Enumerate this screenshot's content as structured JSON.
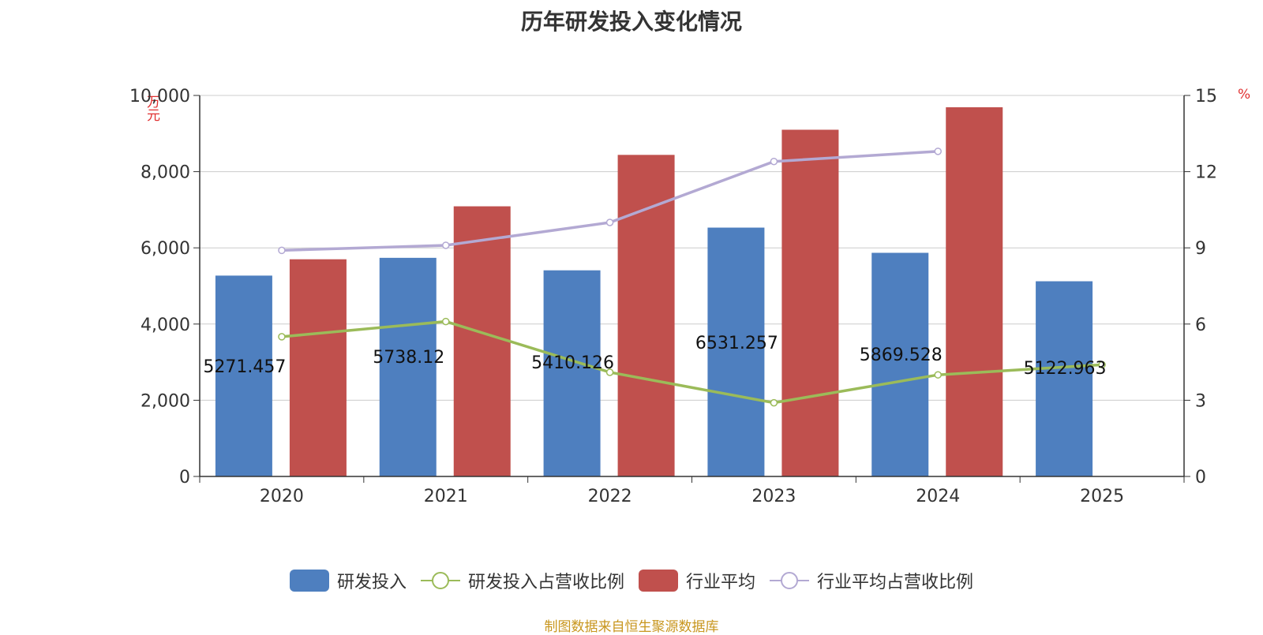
{
  "title": "历年研发投入变化情况",
  "source": "制图数据来自恒生聚源数据库",
  "units": {
    "left": "万元",
    "right": "%"
  },
  "legend": [
    {
      "label": "研发投入",
      "kind": "bar",
      "color": "#4e7fbf"
    },
    {
      "label": "研发投入占营收比例",
      "kind": "line",
      "color": "#9bbb59"
    },
    {
      "label": "行业平均",
      "kind": "bar",
      "color": "#c0504d"
    },
    {
      "label": "行业平均占营收比例",
      "kind": "line",
      "color": "#b3a9d3"
    }
  ],
  "chart_data": {
    "type": "bar",
    "title": "历年研发投入变化情况",
    "categories": [
      "2020",
      "2021",
      "2022",
      "2023",
      "2024",
      "2025"
    ],
    "ylim_left": [
      0,
      10000
    ],
    "yticks_left": [
      "0",
      "2,000",
      "4,000",
      "6,000",
      "8,000",
      "10,000"
    ],
    "ylim_right": [
      0,
      15
    ],
    "yticks_right": [
      "0",
      "3",
      "6",
      "9",
      "12",
      "15"
    ],
    "grid": true,
    "legend_position": "bottom",
    "series": [
      {
        "name": "研发投入",
        "type": "bar",
        "axis": "left",
        "color": "#4e7fbf",
        "values": [
          5271.457,
          5738.12,
          5410.126,
          6531.257,
          5869.528,
          5122.963
        ],
        "labels": [
          "5271.457",
          "5738.12",
          "5410.126",
          "6531.257",
          "5869.528",
          "5122.963"
        ]
      },
      {
        "name": "行业平均",
        "type": "bar",
        "axis": "left",
        "color": "#c0504d",
        "values": [
          5700,
          7090,
          8440,
          9100,
          9690,
          null
        ]
      },
      {
        "name": "研发投入占营收比例",
        "type": "line",
        "axis": "right",
        "color": "#9bbb59",
        "values": [
          5.5,
          6.1,
          4.1,
          2.9,
          4.0,
          4.4
        ]
      },
      {
        "name": "行业平均占营收比例",
        "type": "line",
        "axis": "right",
        "color": "#b3a9d3",
        "values": [
          8.9,
          9.1,
          10.0,
          12.4,
          12.8,
          null
        ]
      }
    ]
  }
}
